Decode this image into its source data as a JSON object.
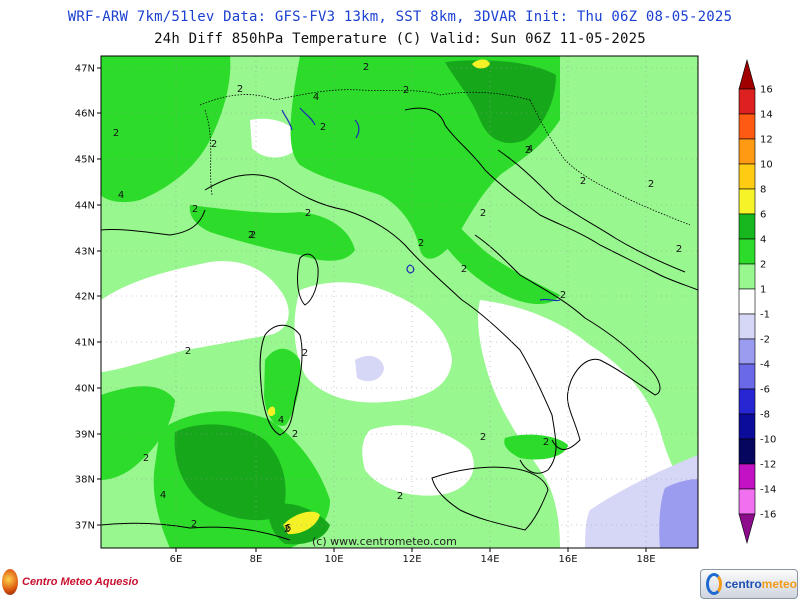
{
  "header": {
    "line1": "WRF-ARW 7km/51lev  Data: GFS-FV3 13km, SST 8km, 3DVAR  Init: Thu 06Z 08-05-2025",
    "line2": "24h Diff 850hPa Temperature (C)  Valid: Sun 06Z 11-05-2025"
  },
  "map": {
    "lat_labels": [
      "47N",
      "46N",
      "45N",
      "44N",
      "43N",
      "42N",
      "41N",
      "40N",
      "39N",
      "38N",
      "37N"
    ],
    "lon_labels": [
      "6E",
      "8E",
      "10E",
      "12E",
      "14E",
      "16E",
      "18E"
    ],
    "contour_labels": [
      "2",
      "2",
      "4",
      "2",
      "2",
      "2",
      "2",
      "2",
      "4",
      "2",
      "2",
      "2",
      "2",
      "2",
      "2",
      "2",
      "2",
      "2",
      "2",
      "2",
      "2",
      "2",
      "4",
      "2",
      "2",
      "2",
      "2",
      "4",
      "2",
      "6",
      "4",
      "2",
      "2"
    ],
    "colors": {
      "light_green": "#98f78e",
      "green": "#2ddc2b",
      "dark_green": "#16a81a",
      "yellow": "#f4f226",
      "lavender": "#d6d6f7",
      "periwinkle": "#9b9cf0",
      "white": "#ffffff"
    }
  },
  "colorbar": {
    "labels": [
      "16",
      "14",
      "12",
      "10",
      "8",
      "6",
      "4",
      "2",
      "1",
      "-1",
      "-2",
      "-4",
      "-6",
      "-8",
      "-10",
      "-12",
      "-14",
      "-16"
    ],
    "colors": [
      "#a00000",
      "#dd2020",
      "#ff5a14",
      "#ff9a12",
      "#ffcc14",
      "#f6f428",
      "#16b81e",
      "#2ddc2b",
      "#98f78e",
      "#ffffff",
      "#d6d6f7",
      "#9b9cf0",
      "#6a6ae8",
      "#2626d2",
      "#0c0c9a",
      "#06065e",
      "#c312c3",
      "#f070f0",
      "#8c0c8c"
    ]
  },
  "credit": "(c) www.centrometeo.com",
  "logos": {
    "left_text": "Centro Meteo Aquesio",
    "right_text_a": "centro",
    "right_text_b": "meteo"
  }
}
